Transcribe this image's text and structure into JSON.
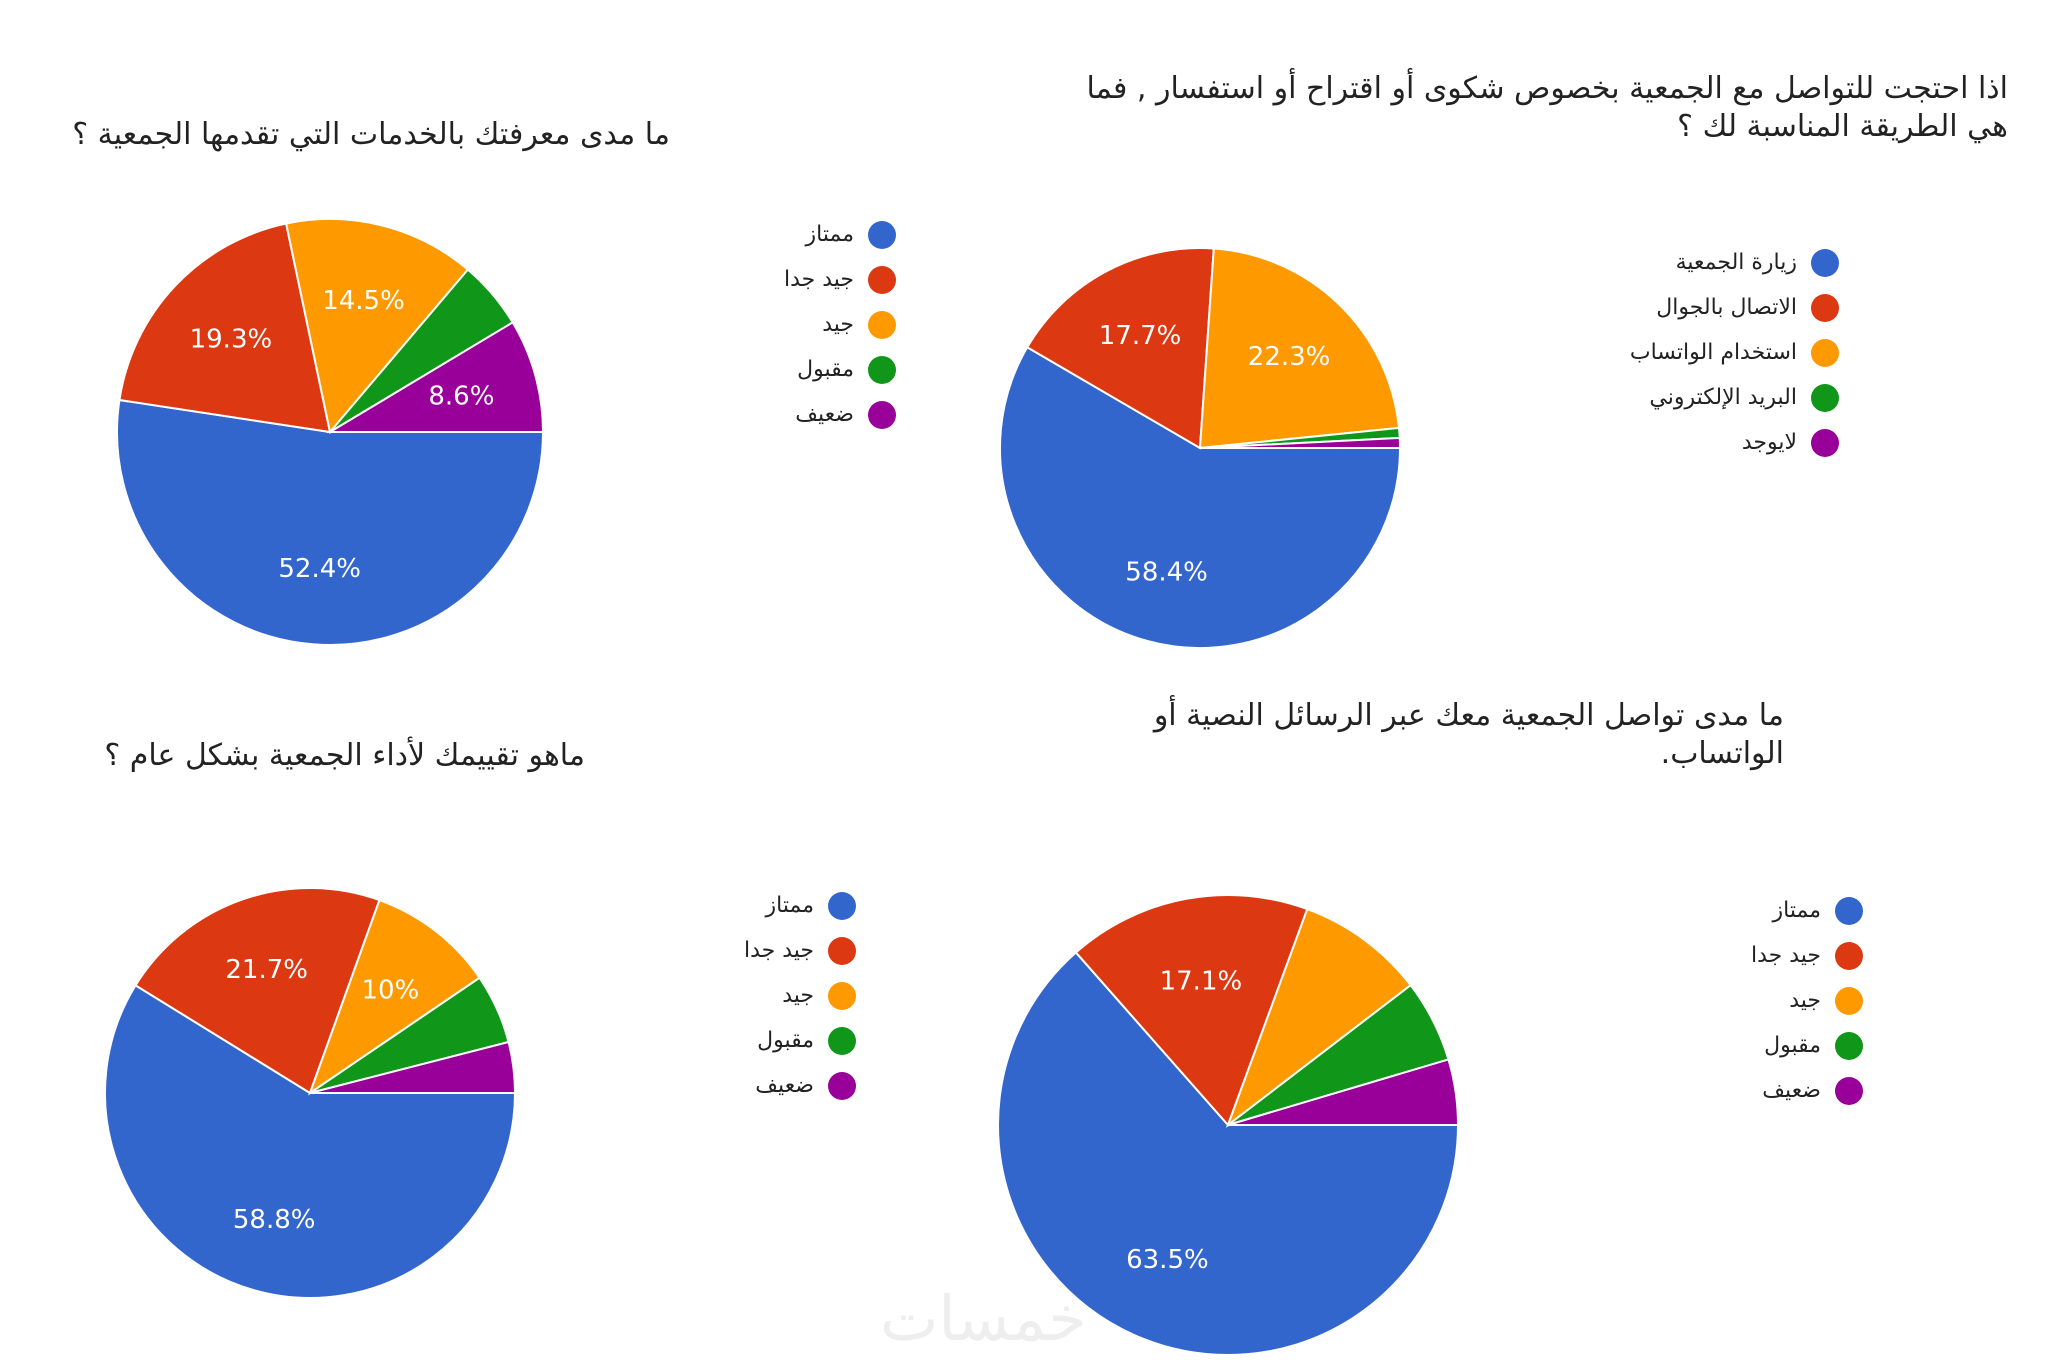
{
  "watermark": "خمسات",
  "chart_data": [
    {
      "type": "pie",
      "title": "ما مدى معرفتك بالخدمات التي تقدمها الجمعية ؟",
      "categories": [
        "ممتاز",
        "جيد جدا",
        "جيد",
        "مقبول",
        "ضعيف"
      ],
      "values": [
        52.4,
        19.3,
        14.5,
        5.2,
        8.6
      ],
      "data_labels": [
        "52.4%",
        "19.3%",
        "14.5%",
        "",
        "8.6%"
      ],
      "colors": [
        "#3366cc",
        "#dc3912",
        "#ff9900",
        "#109618",
        "#990099"
      ],
      "legend": "right"
    },
    {
      "type": "pie",
      "title": "اذا احتجت للتواصل مع الجمعية بخصوص شكوى أو اقتراح أو استفسار , فما هي الطريقة المناسبة لك ؟",
      "categories": [
        "زيارة الجمعية",
        "الاتصال بالجوال",
        "استخدام الواتساب",
        "البريد الإلكتروني",
        "لايوجد"
      ],
      "values": [
        58.4,
        17.7,
        22.3,
        0.8,
        0.8
      ],
      "data_labels": [
        "58.4%",
        "17.7%",
        "22.3%",
        "",
        ""
      ],
      "colors": [
        "#3366cc",
        "#dc3912",
        "#ff9900",
        "#109618",
        "#990099"
      ],
      "legend": "right"
    },
    {
      "type": "pie",
      "title": "ماهو تقييمك لأداء الجمعية بشكل عام ؟",
      "categories": [
        "ممتاز",
        "جيد جدا",
        "جيد",
        "مقبول",
        "ضعيف"
      ],
      "values": [
        58.8,
        21.7,
        10,
        5.5,
        4
      ],
      "data_labels": [
        "58.8%",
        "21.7%",
        "10%",
        "",
        ""
      ],
      "colors": [
        "#3366cc",
        "#dc3912",
        "#ff9900",
        "#109618",
        "#990099"
      ],
      "legend": "right"
    },
    {
      "type": "pie",
      "title": "ما مدى تواصل الجمعية معك عبر الرسائل النصية أو الواتساب.",
      "categories": [
        "ممتاز",
        "جيد جدا",
        "جيد",
        "مقبول",
        "ضعيف"
      ],
      "values": [
        63.5,
        17.1,
        9,
        5.8,
        4.6
      ],
      "data_labels": [
        "63.5%",
        "17.1%",
        "",
        "",
        ""
      ],
      "colors": [
        "#3366cc",
        "#dc3912",
        "#ff9900",
        "#109618",
        "#990099"
      ],
      "legend": "right"
    }
  ]
}
